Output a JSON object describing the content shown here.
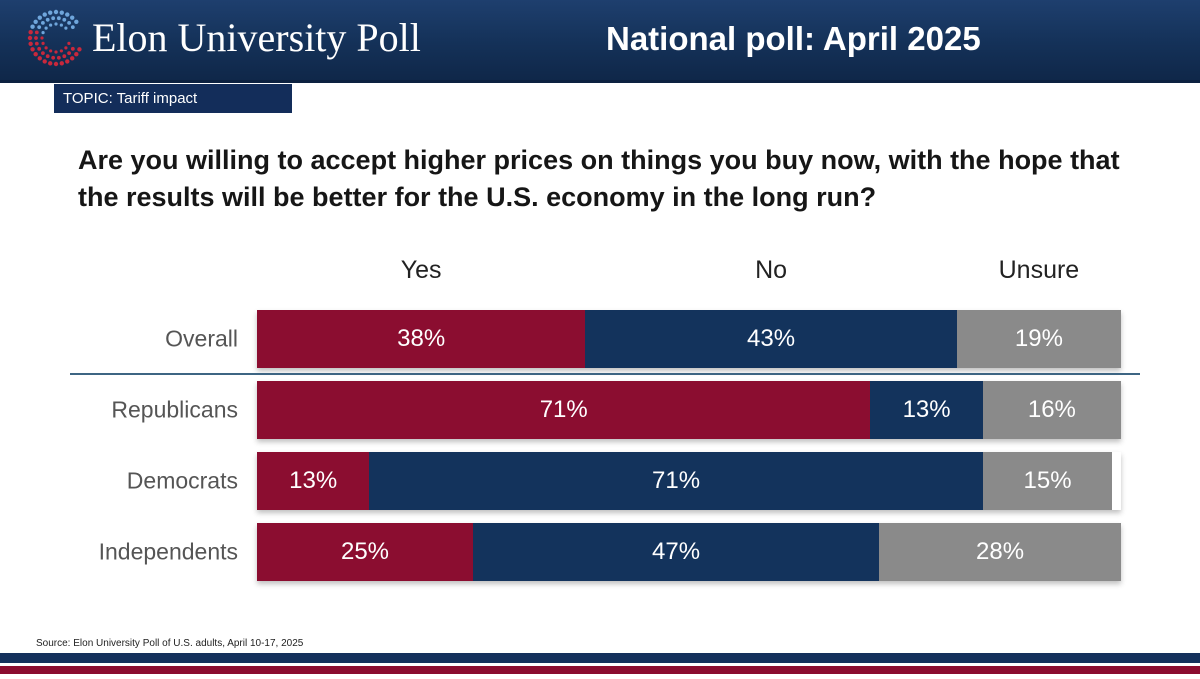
{
  "header": {
    "logo_text": "Elon University Poll",
    "title": "National poll: April 2025"
  },
  "topic": "TOPIC: Tariff impact",
  "question": "Are you willing to accept higher prices on things you buy now, with the hope that the results will be better for the U.S. economy in the long run?",
  "source": "Source: Elon University Poll of U.S. adults, April 10-17, 2025",
  "colors": {
    "yes": "#8b0d30",
    "no": "#13335c",
    "unsure": "#8a8a8a",
    "header": "#143158"
  },
  "chart_data": {
    "type": "bar",
    "orientation": "horizontal",
    "stacked": true,
    "categories": [
      "Overall",
      "Republicans",
      "Democrats",
      "Independents"
    ],
    "series": [
      {
        "name": "Yes",
        "values": [
          38,
          71,
          13,
          25
        ],
        "labels": [
          "38%",
          "71%",
          "13%",
          "25%"
        ]
      },
      {
        "name": "No",
        "values": [
          43,
          13,
          71,
          47
        ],
        "labels": [
          "43%",
          "13%",
          "71%",
          "47%"
        ]
      },
      {
        "name": "Unsure",
        "values": [
          19,
          16,
          15,
          28
        ],
        "labels": [
          "19%",
          "16%",
          "15%",
          "28%"
        ]
      }
    ],
    "legend": "top",
    "grid": false,
    "xlim": [
      0,
      100
    ]
  }
}
